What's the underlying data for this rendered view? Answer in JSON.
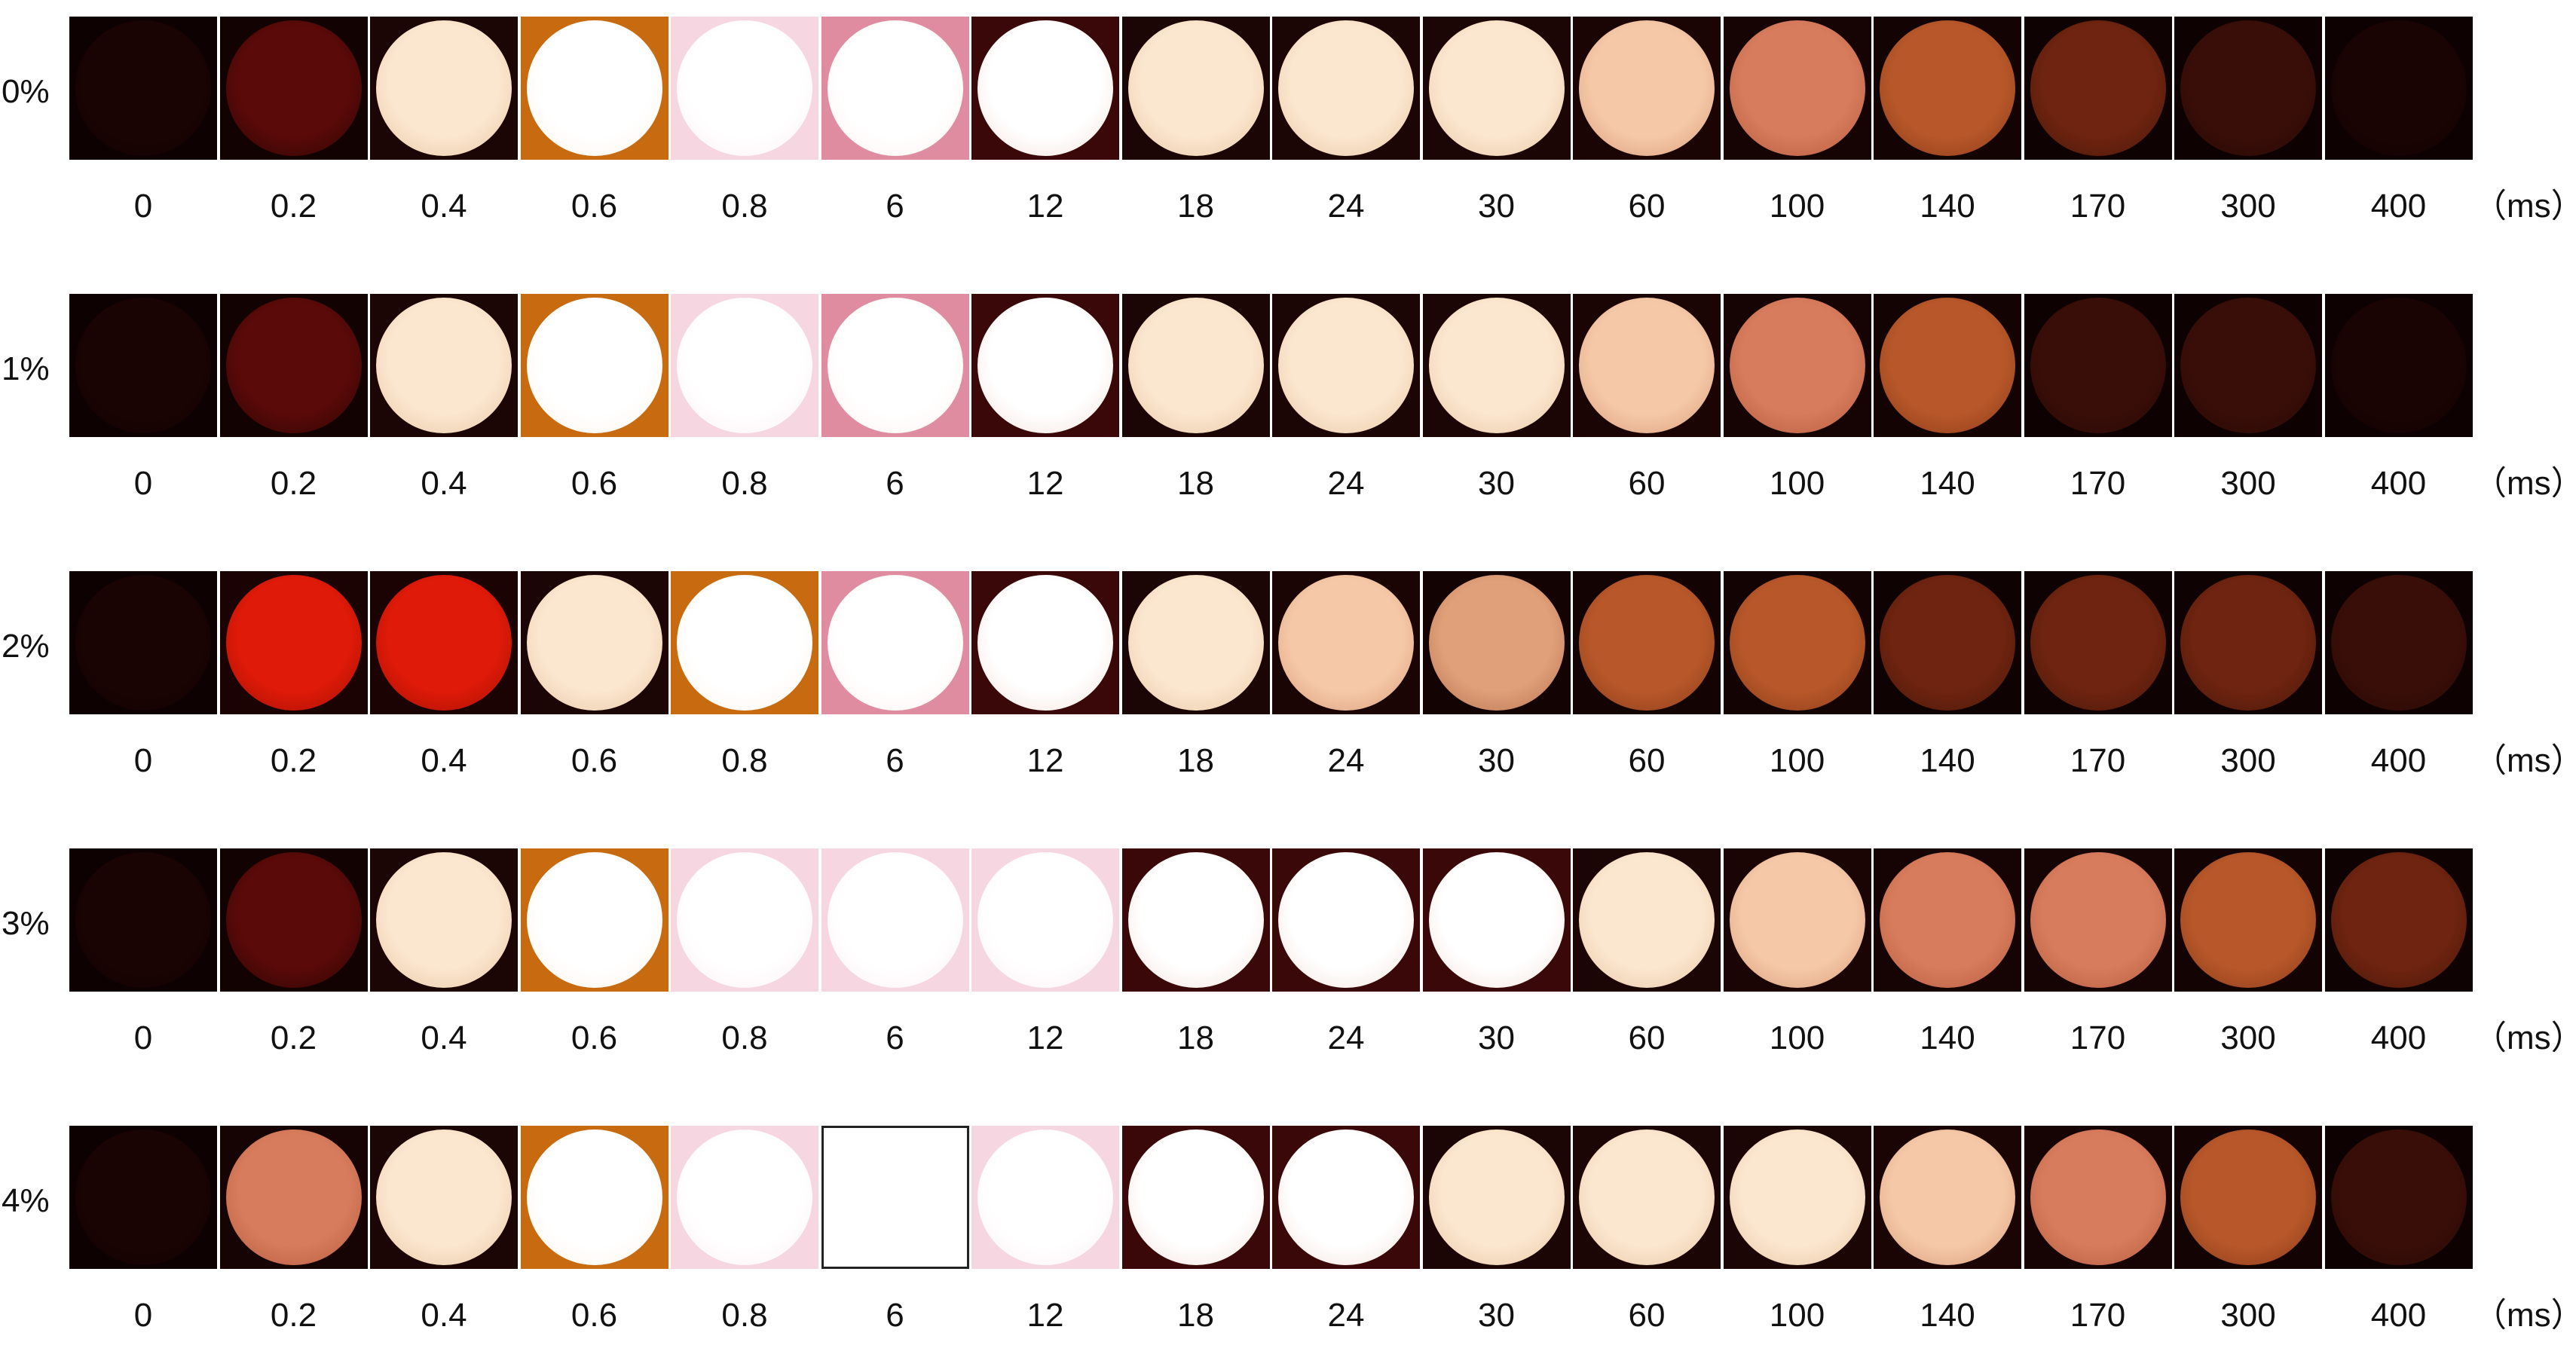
{
  "rows": [
    {
      "label": "0%",
      "times": [
        "0",
        "0.2",
        "0.4",
        "0.6",
        "0.8",
        "6",
        "12",
        "18",
        "24",
        "30",
        "60",
        "100",
        "140",
        "170",
        "300",
        "400"
      ],
      "unit": "（ms）"
    },
    {
      "label": "1%",
      "times": [
        "0",
        "0.2",
        "0.4",
        "0.6",
        "0.8",
        "6",
        "12",
        "18",
        "24",
        "30",
        "60",
        "100",
        "140",
        "170",
        "300",
        "400"
      ],
      "unit": "（ms）"
    },
    {
      "label": "2%",
      "times": [
        "0",
        "0.2",
        "0.4",
        "0.6",
        "0.8",
        "6",
        "12",
        "18",
        "24",
        "30",
        "60",
        "100",
        "140",
        "170",
        "300",
        "400"
      ],
      "unit": "（ms）"
    },
    {
      "label": "3%",
      "times": [
        "0",
        "0.2",
        "0.4",
        "0.6",
        "0.8",
        "6",
        "12",
        "18",
        "24",
        "30",
        "60",
        "100",
        "140",
        "170",
        "300",
        "400"
      ],
      "unit": "（ms）"
    },
    {
      "label": "4%",
      "times": [
        "0",
        "0.2",
        "0.4",
        "0.6",
        "0.8",
        "6",
        "12",
        "18",
        "24",
        "30",
        "60",
        "100",
        "140",
        "170",
        "300",
        "400"
      ],
      "unit": "（ms）"
    }
  ]
}
